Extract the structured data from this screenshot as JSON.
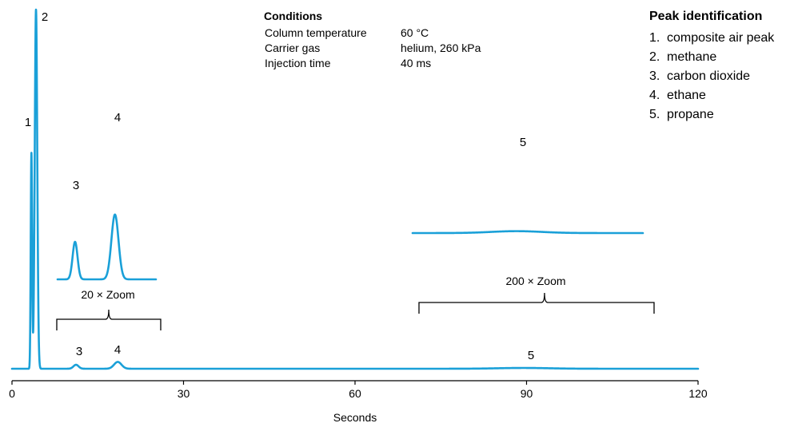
{
  "conditions": {
    "title": "Conditions",
    "rows": [
      {
        "label": "Column temperature",
        "value": "60 °C"
      },
      {
        "label": "Carrier gas",
        "value": "helium, 260 kPa"
      },
      {
        "label": "Injection time",
        "value": "40 ms"
      }
    ]
  },
  "peak_identification": {
    "title": "Peak identification",
    "items": [
      {
        "num": "1.",
        "name": "composite air peak"
      },
      {
        "num": "2.",
        "name": "methane"
      },
      {
        "num": "3.",
        "name": "carbon dioxide"
      },
      {
        "num": "4.",
        "name": "ethane"
      },
      {
        "num": "5.",
        "name": "propane"
      }
    ]
  },
  "chart_data": {
    "type": "line",
    "title": "",
    "xlabel": "Seconds",
    "ylabel": "",
    "xlim": [
      0,
      120
    ],
    "xticks": [
      0,
      30,
      60,
      90,
      120
    ],
    "grid": false,
    "colors": {
      "trace": "#1aa0d8"
    },
    "peaks": [
      {
        "label": "1",
        "rt": 3.4,
        "height": 0.6,
        "sigma": 0.12
      },
      {
        "label": "2",
        "rt": 4.2,
        "height": 1.0,
        "sigma": 0.22
      },
      {
        "label": "3",
        "rt": 11.2,
        "height": 0.011,
        "sigma": 0.45
      },
      {
        "label": "4",
        "rt": 18.5,
        "height": 0.019,
        "sigma": 0.65
      },
      {
        "label": "5",
        "rt": 89.5,
        "height": 0.0022,
        "sigma": 4.5
      }
    ],
    "insets": [
      {
        "label": "20 × Zoom",
        "zoom": 20,
        "range": [
          8,
          26
        ],
        "peaks": [
          "3",
          "4"
        ]
      },
      {
        "label": "200 × Zoom",
        "zoom": 200,
        "range": [
          71,
          112
        ],
        "peaks": [
          "5"
        ]
      }
    ]
  }
}
